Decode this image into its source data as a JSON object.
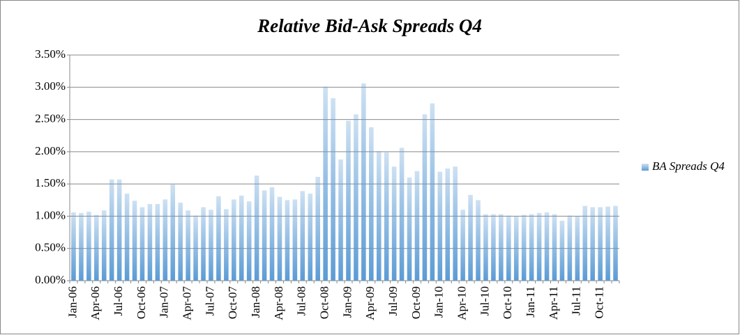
{
  "chart_data": {
    "type": "bar",
    "title": "Relative Bid-Ask Spreads Q4",
    "categories": [
      "Jan-06",
      null,
      null,
      "Apr-06",
      null,
      null,
      "Jul-06",
      null,
      null,
      "Oct-06",
      null,
      null,
      "Jan-07",
      null,
      null,
      "Apr-07",
      null,
      null,
      "Jul-07",
      null,
      null,
      "Oct-07",
      null,
      null,
      "Jan-08",
      null,
      null,
      "Apr-08",
      null,
      null,
      "Jul-08",
      null,
      null,
      "Oct-08",
      null,
      null,
      "Jan-09",
      null,
      null,
      "Apr-09",
      null,
      null,
      "Jul-09",
      null,
      null,
      "Oct-09",
      null,
      null,
      "Jan-10",
      null,
      null,
      "Apr-10",
      null,
      null,
      "Jul-10",
      null,
      null,
      "Oct-10",
      null,
      null,
      "Jan-11",
      null,
      null,
      "Apr-11",
      null,
      null,
      "Jul-11",
      null,
      null,
      "Oct-11",
      null,
      null
    ],
    "series": [
      {
        "name": "BA Spreads Q4",
        "color": "#5b9bd5",
        "values": [
          1.06,
          1.05,
          1.07,
          1.02,
          1.09,
          1.57,
          1.57,
          1.35,
          1.24,
          1.14,
          1.19,
          1.19,
          1.26,
          1.49,
          1.21,
          1.09,
          1.01,
          1.14,
          1.1,
          1.31,
          1.11,
          1.26,
          1.32,
          1.23,
          1.63,
          1.4,
          1.45,
          1.3,
          1.25,
          1.26,
          1.39,
          1.35,
          1.61,
          3.01,
          2.83,
          1.88,
          2.48,
          2.58,
          3.06,
          2.38,
          2.01,
          1.99,
          1.77,
          2.06,
          1.6,
          1.7,
          2.58,
          2.75,
          1.69,
          1.74,
          1.77,
          1.1,
          1.33,
          1.25,
          1.03,
          1.03,
          1.03,
          1.01,
          1.0,
          1.02,
          1.03,
          1.05,
          1.06,
          1.03,
          0.93,
          1.01,
          1.0,
          1.16,
          1.14,
          1.14,
          1.15,
          1.16
        ]
      }
    ],
    "ylim": [
      0,
      3.5
    ],
    "yticks": [
      {
        "value": 0,
        "label": "0.00%"
      },
      {
        "value": 0.5,
        "label": "0.50%"
      },
      {
        "value": 1,
        "label": "1.00%"
      },
      {
        "value": 1.5,
        "label": "1.50%"
      },
      {
        "value": 2,
        "label": "2.00%"
      },
      {
        "value": 2.5,
        "label": "2.50%"
      },
      {
        "value": 3,
        "label": "3.00%"
      },
      {
        "value": 3.5,
        "label": "3.50%"
      }
    ],
    "grid": true,
    "legend": "right"
  }
}
